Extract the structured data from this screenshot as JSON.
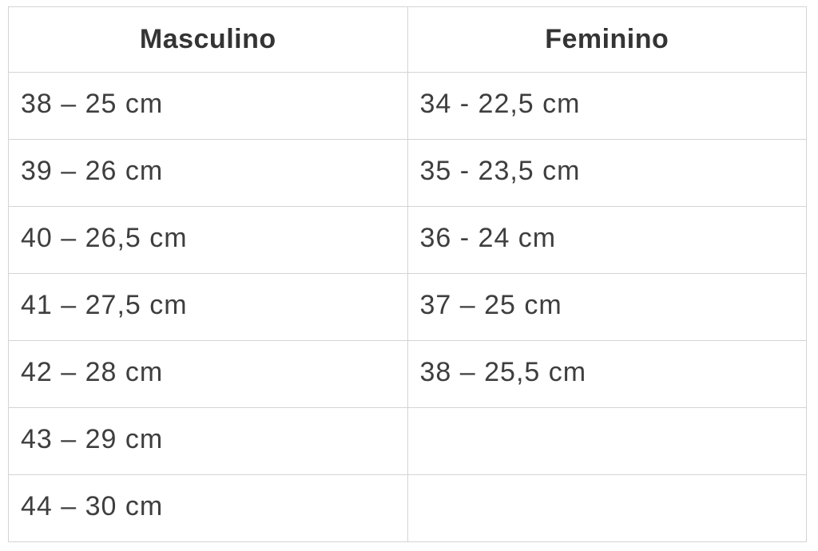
{
  "table": {
    "title": "size-conversion-table",
    "columns": [
      {
        "header": "Masculino"
      },
      {
        "header": "Feminino"
      }
    ],
    "rows": [
      {
        "masculino": "38 – 25 cm",
        "feminino": "34 - 22,5 cm"
      },
      {
        "masculino": "39 – 26 cm",
        "feminino": "35 - 23,5 cm"
      },
      {
        "masculino": "40 – 26,5 cm",
        "feminino": "36 - 24 cm"
      },
      {
        "masculino": "41 – 27,5 cm",
        "feminino": "37 – 25 cm"
      },
      {
        "masculino": "42 – 28 cm",
        "feminino": "38 – 25,5 cm"
      },
      {
        "masculino": "43 – 29 cm",
        "feminino": ""
      },
      {
        "masculino": "44 – 30 cm",
        "feminino": ""
      }
    ],
    "colors": {
      "border": "#d4d4d4",
      "text": "#3e3e3e",
      "header_text": "#343434",
      "background": "#ffffff"
    }
  }
}
